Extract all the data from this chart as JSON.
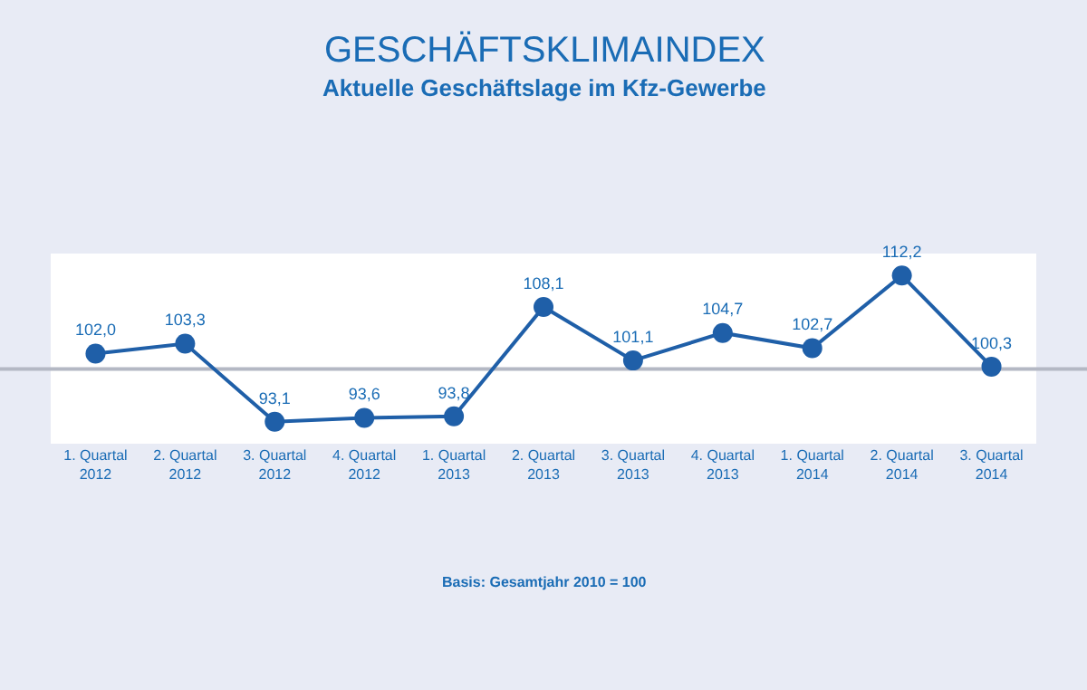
{
  "chart_data": {
    "type": "line",
    "title": "GESCHÄFTSKLIMAINDEX",
    "subtitle": "Aktuelle Geschäftslage im Kfz-Gewerbe",
    "categories": [
      "1. Quartal 2012",
      "2. Quartal 2012",
      "3. Quartal 2012",
      "4. Quartal 2012",
      "1. Quartal 2013",
      "2. Quartal 2013",
      "3. Quartal 2013",
      "4. Quartal 2013",
      "1. Quartal 2014",
      "2. Quartal 2014",
      "3. Quartal 2014"
    ],
    "series": [
      {
        "color": "#1f5fa8",
        "values": [
          102.0,
          103.3,
          93.1,
          93.6,
          93.8,
          108.1,
          101.1,
          104.7,
          102.7,
          112.2,
          100.3
        ],
        "value_labels": [
          "102,0",
          "103,3",
          "93,1",
          "93,6",
          "93,8",
          "108,1",
          "101,1",
          "104,7",
          "102,7",
          "112,2",
          "100,3"
        ]
      }
    ],
    "tick_labels": "x",
    "grid": false,
    "marker": "circle",
    "line_style": "solid",
    "ref_lines": [
      {
        "axis": "y",
        "value": 100,
        "color": "#b4b8c4"
      }
    ],
    "annotations": [
      "Basis: Gesamtjahr 2010 = 100"
    ]
  }
}
